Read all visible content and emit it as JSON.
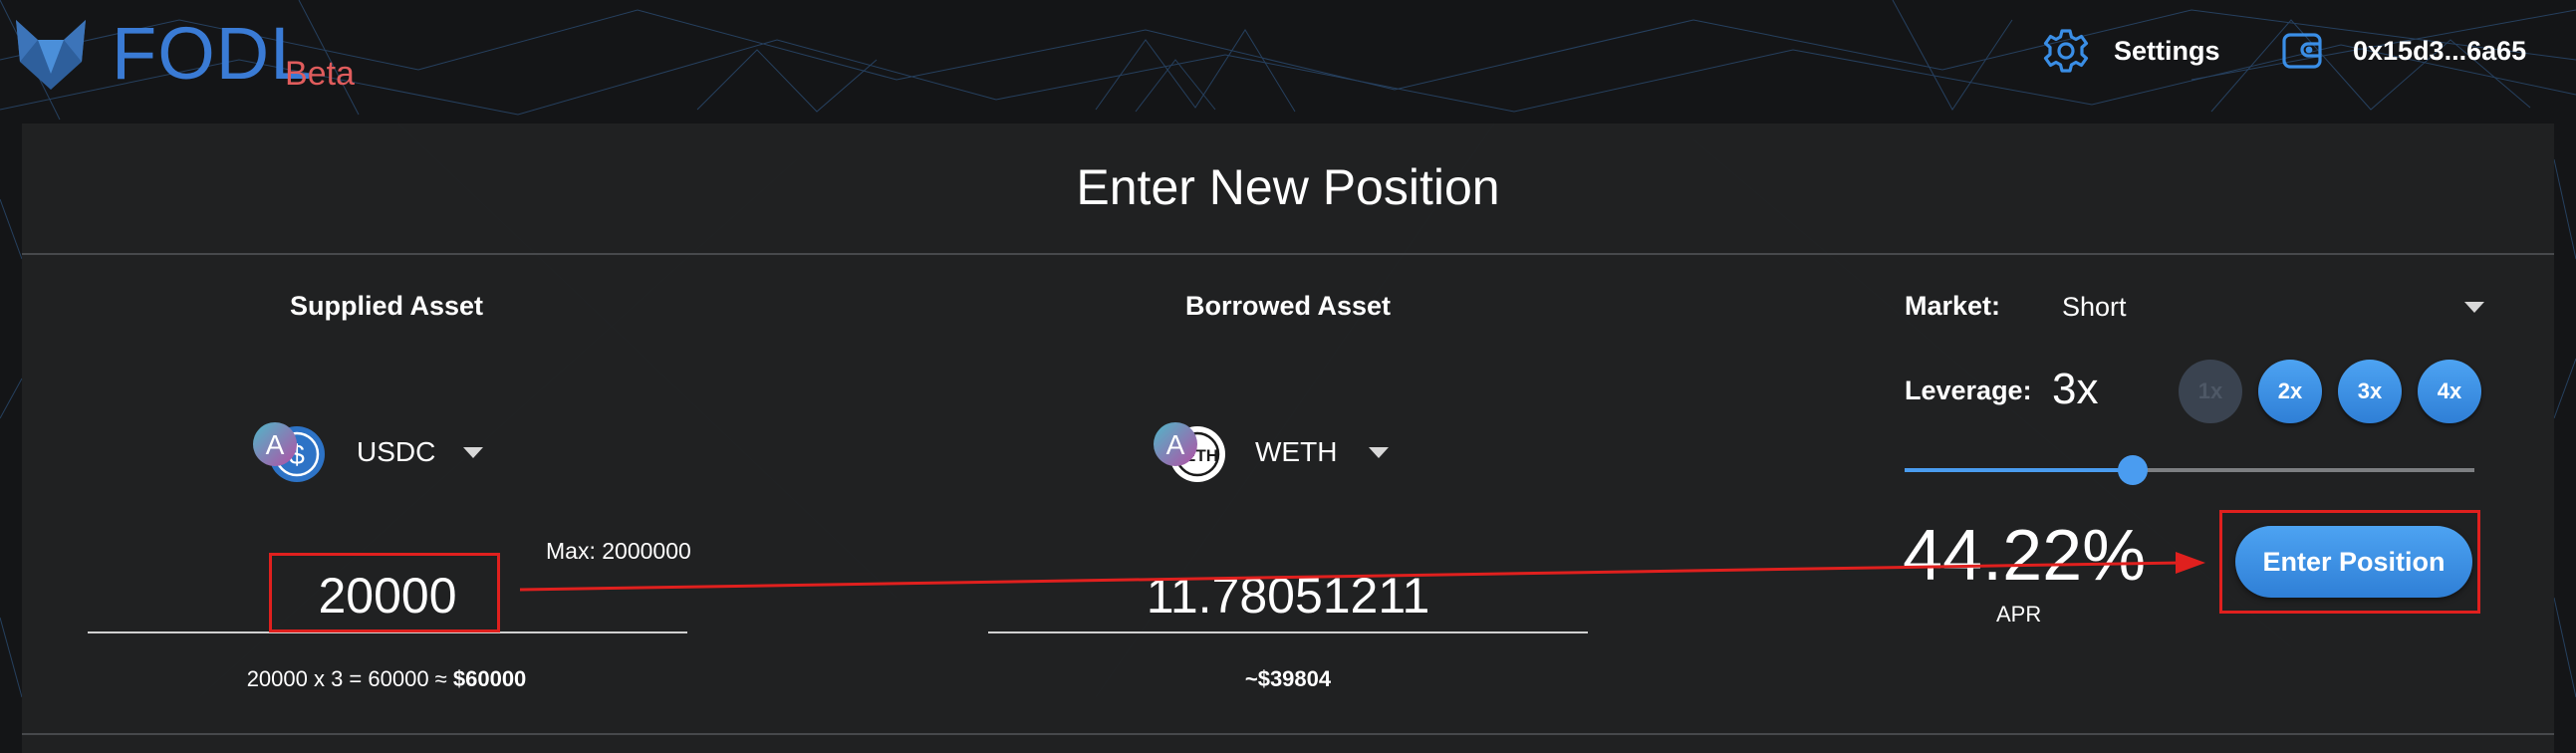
{
  "header": {
    "brand": "FODL",
    "badge": "Beta",
    "settings_label": "Settings",
    "wallet_label": "0x15d3...6a65"
  },
  "card": {
    "title": "Enter New Position"
  },
  "supplied": {
    "heading": "Supplied Asset",
    "asset": "USDC",
    "max_label": "Max: 2000000",
    "amount": "20000",
    "note_prefix": "20000 x 3 = 60000 ≈ ",
    "note_value": "$60000"
  },
  "borrowed": {
    "heading": "Borrowed Asset",
    "asset": "WETH",
    "token_text": "ETH",
    "amount": "11.78051211",
    "note": "~$39804"
  },
  "market": {
    "label": "Market:",
    "value": "Short"
  },
  "leverage": {
    "label": "Leverage:",
    "value": "3x",
    "options": [
      "1x",
      "2x",
      "3x",
      "4x"
    ],
    "slider_fraction": 0.4
  },
  "apr": {
    "value": "44.22%",
    "label": "APR"
  },
  "actions": {
    "enter_label": "Enter Position"
  },
  "colors": {
    "accent": "#3a8ee6",
    "brand": "#3a7bd5",
    "beta": "#e05c5c",
    "annotation": "#e0201e"
  }
}
